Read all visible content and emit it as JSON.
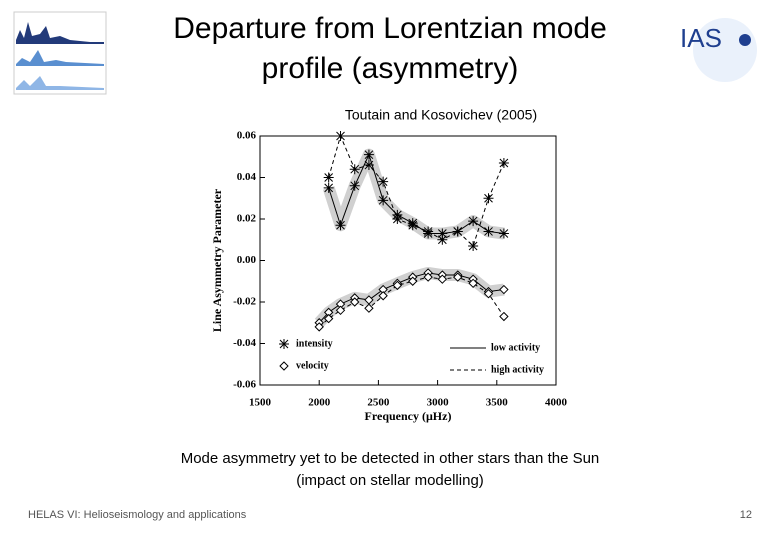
{
  "title": [
    "Departure from Lorentzian mode",
    "profile (asymmetry)"
  ],
  "citation": "Toutain and Kosovichev (2005)",
  "logo": "IAS",
  "caption": [
    "Mode asymmetry yet to be detected in other stars than the Sun",
    "(impact on stellar modelling)"
  ],
  "footer": "HELAS VI: Helioseismology and applications",
  "page_number": "12",
  "chart_data": {
    "type": "line",
    "x_label": "Frequency (μHz)",
    "y_label": "Line Asymmetry Parameter",
    "xlim": [
      1500,
      4000
    ],
    "xticks": [
      1500,
      2000,
      2500,
      3000,
      3500,
      4000
    ],
    "ylim": [
      -0.06,
      0.06
    ],
    "yticks": [
      -0.06,
      -0.04,
      -0.02,
      {
        "value": 0,
        "label": "0.00"
      },
      0.02,
      0.04,
      0.06
    ],
    "markers": [
      {
        "name": "intensity",
        "symbol": "star"
      },
      {
        "name": "velocity",
        "symbol": "diamond"
      }
    ],
    "line_styles": [
      {
        "name": "low activity",
        "dash": "solid"
      },
      {
        "name": "high activity",
        "dash": "dashed"
      }
    ],
    "series": [
      {
        "marker": 0,
        "line": 0,
        "x": [
          2080,
          2180,
          2300,
          2420,
          2540,
          2660,
          2790,
          2920,
          3040,
          3170,
          3300,
          3430,
          3560
        ],
        "values": [
          0.035,
          0.017,
          0.036,
          0.051,
          0.029,
          0.022,
          0.018,
          0.013,
          0.013,
          0.014,
          0.019,
          0.014,
          0.013
        ]
      },
      {
        "marker": 0,
        "line": 1,
        "x": [
          2080,
          2180,
          2300,
          2420,
          2540,
          2660,
          2790,
          2920,
          3040,
          3170,
          3300,
          3430,
          3560
        ],
        "values": [
          0.04,
          0.06,
          0.044,
          0.046,
          0.038,
          0.02,
          0.017,
          0.014,
          0.01,
          0.014,
          0.007,
          0.03,
          0.047
        ]
      },
      {
        "marker": 1,
        "line": 0,
        "x": [
          2000,
          2080,
          2180,
          2300,
          2420,
          2540,
          2660,
          2790,
          2920,
          3040,
          3170,
          3300,
          3430,
          3560
        ],
        "values": [
          -0.03,
          -0.025,
          -0.021,
          -0.018,
          -0.019,
          -0.014,
          -0.011,
          -0.008,
          -0.006,
          -0.007,
          -0.007,
          -0.009,
          -0.015,
          -0.014
        ]
      },
      {
        "marker": 1,
        "line": 1,
        "x": [
          2000,
          2080,
          2180,
          2300,
          2420,
          2540,
          2660,
          2790,
          2920,
          3040,
          3170,
          3300,
          3430,
          3560
        ],
        "values": [
          -0.032,
          -0.028,
          -0.024,
          -0.02,
          -0.023,
          -0.017,
          -0.012,
          -0.01,
          -0.008,
          -0.009,
          -0.008,
          -0.011,
          -0.016,
          -0.027
        ]
      }
    ]
  }
}
